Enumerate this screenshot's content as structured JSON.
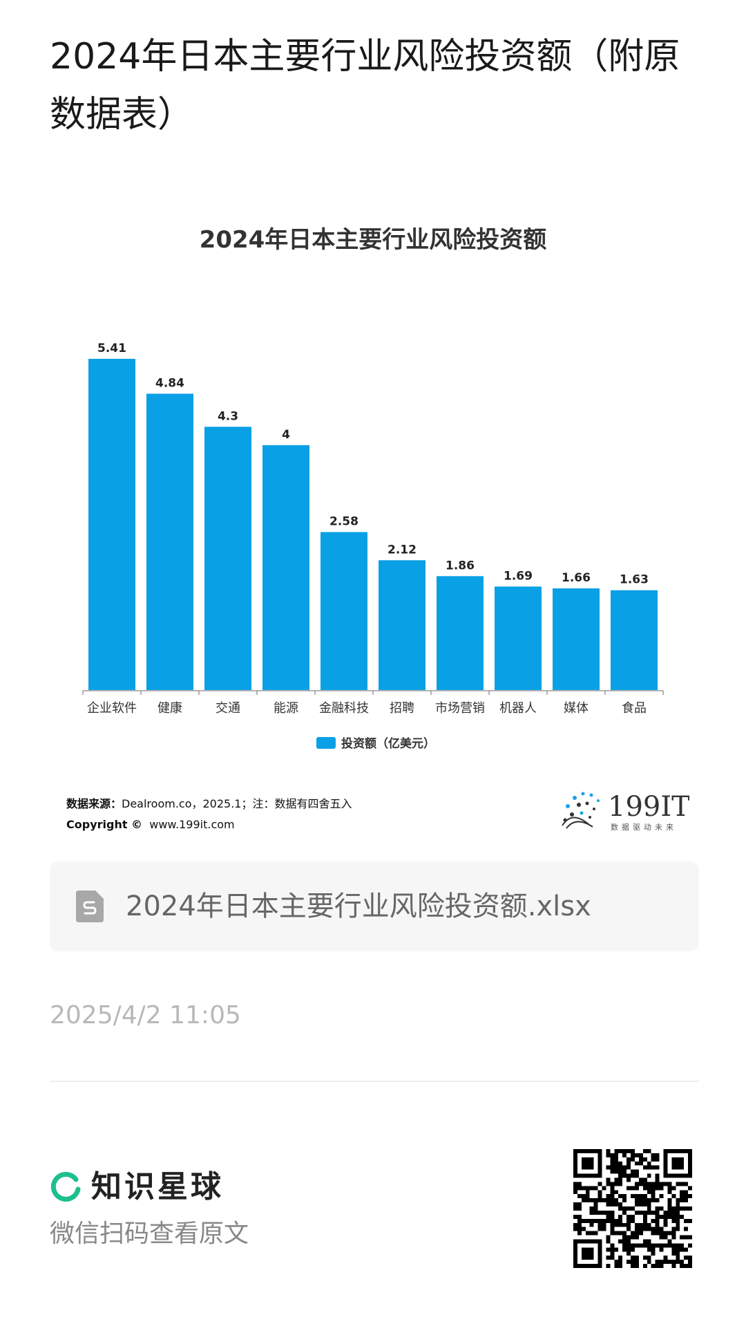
{
  "page_title": "2024年日本主要行业风险投资额（附原数据表）",
  "chart_data": {
    "type": "bar",
    "title": "2024年日本主要行业风险投资额",
    "categories": [
      "企业软件",
      "健康",
      "交通",
      "能源",
      "金融科技",
      "招聘",
      "市场营销",
      "机器人",
      "媒体",
      "食品"
    ],
    "series": [
      {
        "name": "投资额（亿美元）",
        "values": [
          5.41,
          4.84,
          4.3,
          4,
          2.58,
          2.12,
          1.86,
          1.69,
          1.66,
          1.63
        ]
      }
    ],
    "value_labels": [
      "5.41",
      "4.84",
      "4.3",
      "4",
      "2.58",
      "2.12",
      "1.86",
      "1.69",
      "1.66",
      "1.63"
    ],
    "ylim": [
      0,
      5.41
    ],
    "grid": false,
    "legend_position": "bottom",
    "bar_color": "#0aa0e6"
  },
  "source": {
    "label": "数据来源：",
    "text": "Dealroom.co，2025.1；注：数据有四舍五入",
    "copyright_label": "Copyright ©",
    "copyright_url": "www.199it.com"
  },
  "logo": {
    "name": "199IT",
    "tagline": "数据驱动未来"
  },
  "file": {
    "name": "2024年日本主要行业风险投资额.xlsx",
    "icon": "spreadsheet-file-icon"
  },
  "timestamp": "2025/4/2 11:05",
  "brand": {
    "name": "知识星球",
    "subtitle": "微信扫码查看原文",
    "accent": "#1dbf8e"
  }
}
